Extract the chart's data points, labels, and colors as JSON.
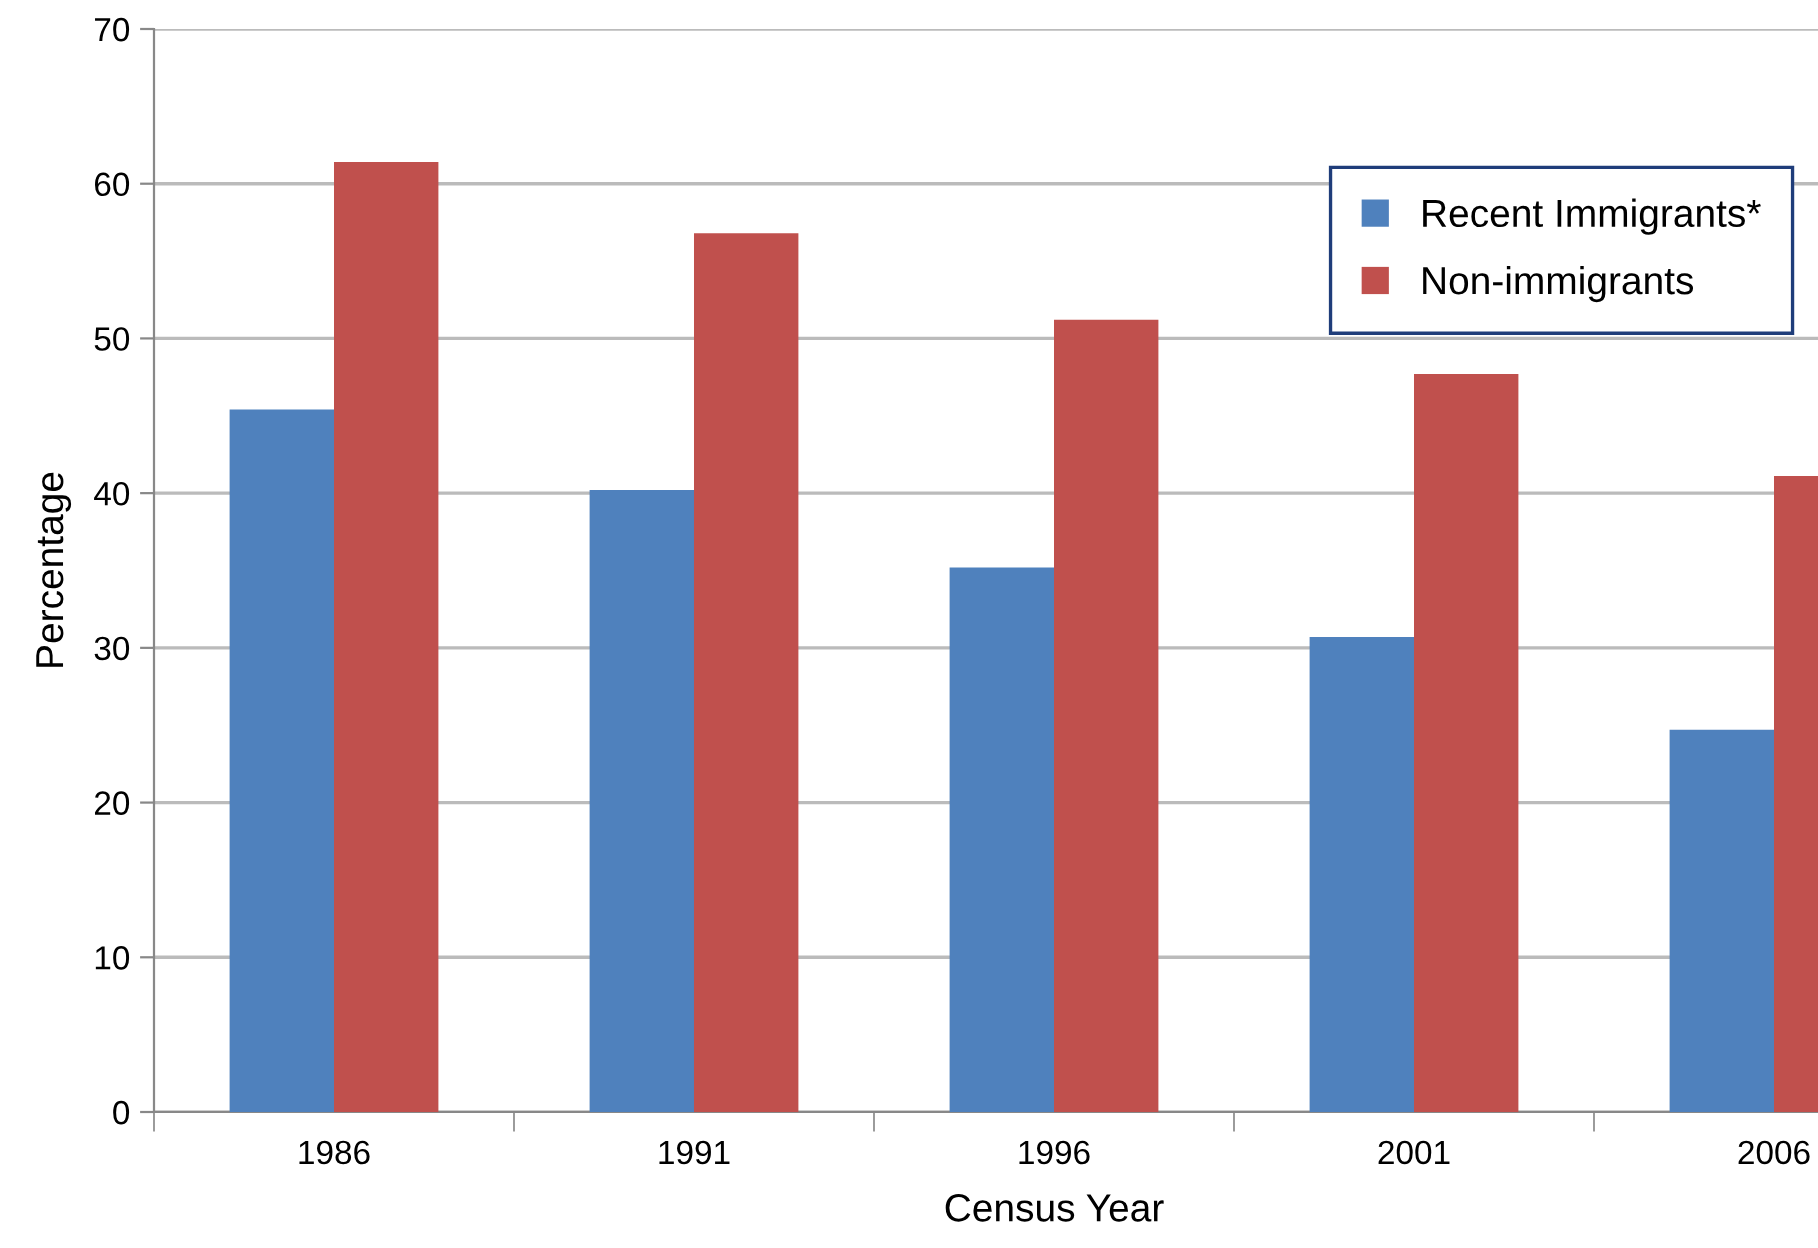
{
  "chart_data": {
    "type": "bar",
    "xlabel": "Census Year",
    "ylabel": "Percentage",
    "categories": [
      "1986",
      "1991",
      "1996",
      "2001",
      "2006"
    ],
    "series": [
      {
        "name": "Recent Immigrants*",
        "color": "#4f81bd",
        "values": [
          45.4,
          40.2,
          35.2,
          30.7,
          24.7
        ]
      },
      {
        "name": "Non-immigrants",
        "color": "#c0504d",
        "values": [
          61.4,
          56.8,
          51.2,
          47.7,
          41.1
        ]
      }
    ],
    "ylim": [
      0,
      70
    ],
    "yticks": [
      0,
      10,
      20,
      30,
      40,
      50,
      60,
      70
    ],
    "grid": "y",
    "legend": "top right"
  }
}
